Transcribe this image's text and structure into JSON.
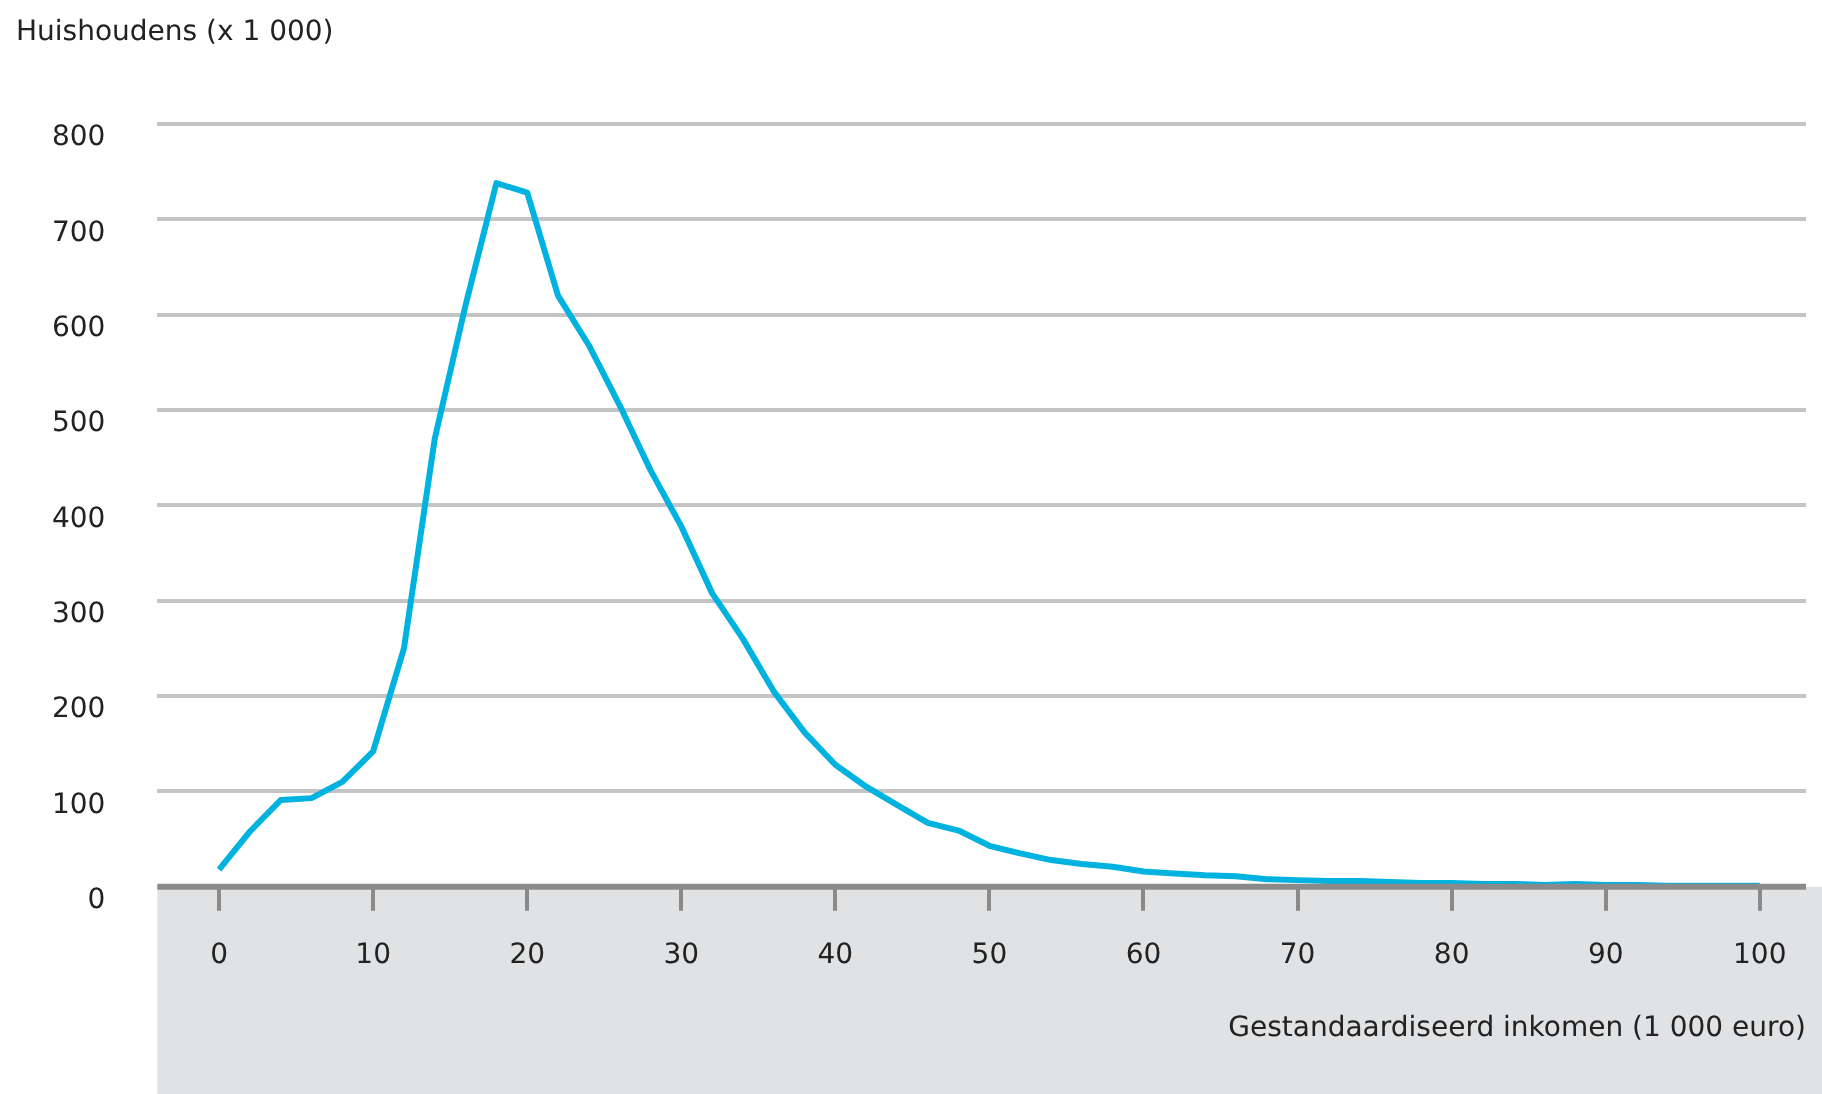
{
  "chart_data": {
    "type": "line",
    "ylabel": "Huishoudens (x 1 000)",
    "xlabel": "Gestandaardiseerd inkomen (1 000 euro)",
    "x": [
      0,
      2,
      4,
      6,
      8,
      10,
      12,
      14,
      16,
      18,
      20,
      22,
      24,
      26,
      28,
      30,
      32,
      34,
      36,
      38,
      40,
      42,
      44,
      46,
      48,
      50,
      52,
      54,
      56,
      58,
      60,
      62,
      64,
      66,
      68,
      70,
      72,
      74,
      76,
      78,
      80,
      82,
      84,
      86,
      88,
      90,
      92,
      94,
      96,
      98,
      100
    ],
    "series": [
      {
        "color": "#00b2e0",
        "values": [
          18,
          58,
          91,
          93,
          110,
          142,
          250,
          470,
          610,
          738,
          728,
          620,
          568,
          505,
          437,
          378,
          308,
          260,
          205,
          162,
          128,
          105,
          86,
          67,
          59,
          43,
          35,
          28,
          24,
          21,
          16,
          14,
          12,
          11,
          8,
          7,
          6,
          6,
          5,
          4,
          4,
          3,
          3,
          2,
          3,
          2,
          2,
          1,
          1,
          1,
          1
        ]
      }
    ],
    "xlim": [
      -4,
      103
    ],
    "xticks": [
      0,
      10,
      20,
      30,
      40,
      50,
      60,
      70,
      80,
      90,
      100
    ],
    "ylim": [
      0,
      800
    ],
    "yticks": [
      0,
      100,
      200,
      300,
      400,
      500,
      600,
      700,
      800
    ],
    "grid": "y",
    "legend": false,
    "marker": "none",
    "line_style": "solid"
  }
}
